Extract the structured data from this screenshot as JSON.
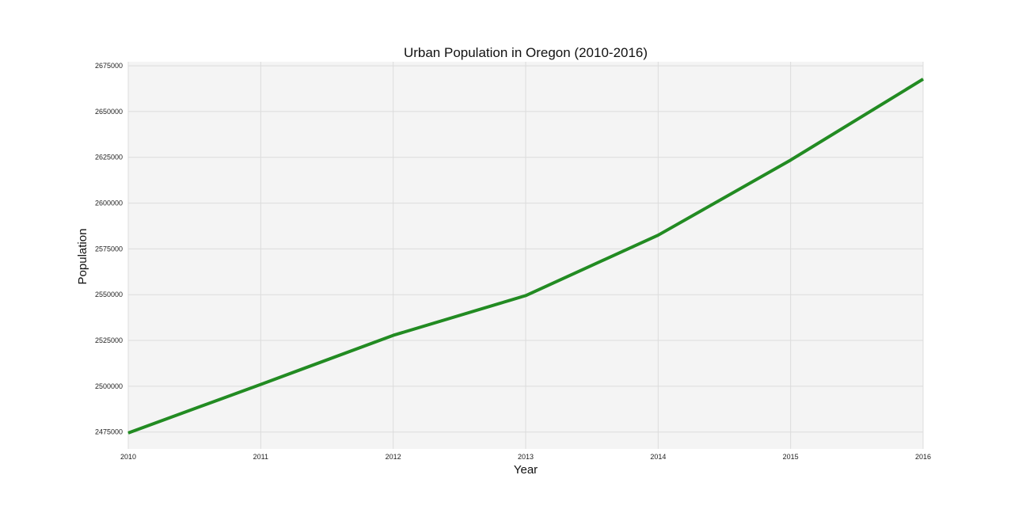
{
  "chart_data": {
    "type": "line",
    "title": "Urban Population in Oregon (2010-2016)",
    "xlabel": "Year",
    "ylabel": "Population",
    "x": [
      2010,
      2011,
      2012,
      2013,
      2014,
      2015,
      2016
    ],
    "series": [
      {
        "values": [
          2474500,
          2501000,
          2527800,
          2549500,
          2582500,
          2623500,
          2667700
        ],
        "color": "#228b22"
      }
    ],
    "x_ticks": [
      "2010",
      "2011",
      "2012",
      "2013",
      "2014",
      "2015",
      "2016"
    ],
    "y_ticks": [
      "2475000",
      "2500000",
      "2525000",
      "2550000",
      "2575000",
      "2600000",
      "2625000",
      "2650000",
      "2675000"
    ],
    "xlim": [
      2010,
      2016
    ],
    "ylim": [
      2465800,
      2677200
    ],
    "grid": true,
    "colors": {
      "background": "#f4f4f4",
      "grid": "#dcdcdc",
      "line": "#228b22"
    }
  }
}
